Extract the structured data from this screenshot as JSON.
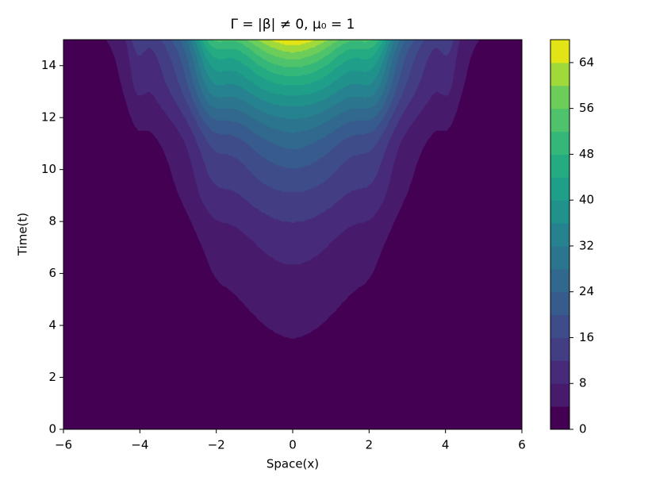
{
  "chart_data": {
    "type": "contourf",
    "title": "Γ = |β| ≠ 0,  μ₀ = 1",
    "x_label": "Space(x)",
    "y_label": "Time(t)",
    "xlim": [
      -6,
      6
    ],
    "xticks": [
      {
        "value": -6,
        "label": "−6"
      },
      {
        "value": -4,
        "label": "−4"
      },
      {
        "value": -2,
        "label": "−2"
      },
      0,
      2,
      4,
      6
    ],
    "ylim": [
      0,
      15
    ],
    "yticks": [
      0,
      2,
      4,
      6,
      8,
      10,
      12,
      14
    ],
    "levels": [
      0,
      4,
      8,
      12,
      16,
      20,
      24,
      28,
      32,
      36,
      40,
      44,
      48,
      52,
      56,
      60,
      64,
      68
    ],
    "colors": [
      "#440154",
      "#481a6c",
      "#472a7a",
      "#433d84",
      "#3e4c8a",
      "#375b8d",
      "#31688e",
      "#2b758e",
      "#26828e",
      "#21918c",
      "#1f9e89",
      "#25ab82",
      "#35b779",
      "#4ec36b",
      "#6ccd5a",
      "#9fda3a",
      "#e2e418"
    ],
    "colorbar_ticks": [
      0,
      8,
      16,
      24,
      32,
      40,
      48,
      56,
      64
    ]
  }
}
